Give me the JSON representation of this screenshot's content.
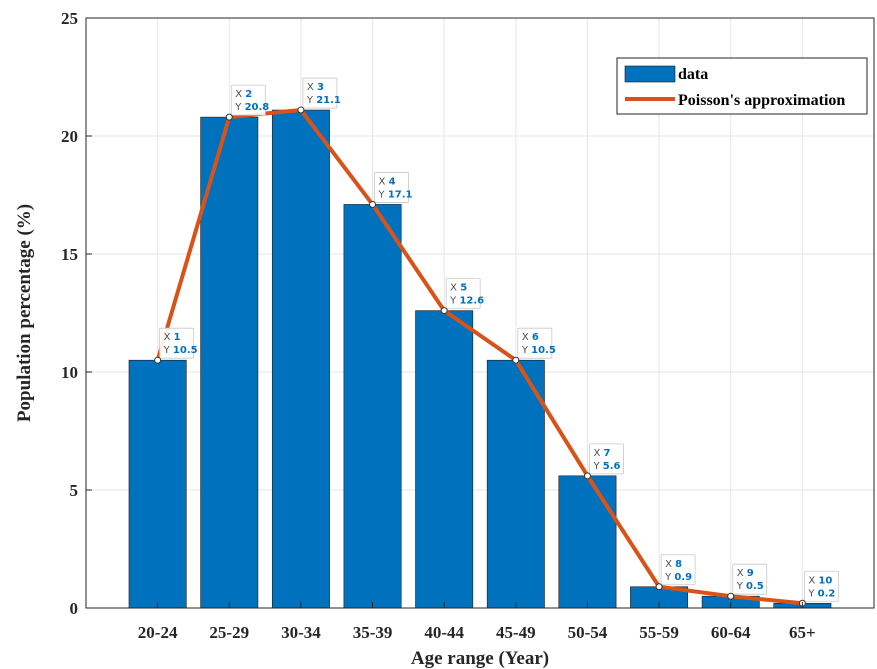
{
  "chart_data": {
    "type": "bar",
    "categories": [
      "20-24",
      "25-29",
      "30-34",
      "35-39",
      "40-44",
      "45-49",
      "50-54",
      "55-59",
      "60-64",
      "65+"
    ],
    "series": [
      {
        "name": "data",
        "type": "bar",
        "color": "#0072bd",
        "values": [
          10.5,
          20.8,
          21.1,
          17.1,
          12.6,
          10.5,
          5.6,
          0.9,
          0.5,
          0.2
        ]
      },
      {
        "name": "Poisson's approximation",
        "type": "line",
        "color": "#d95319",
        "values": [
          10.5,
          20.8,
          21.1,
          17.1,
          12.6,
          10.5,
          5.6,
          0.9,
          0.5,
          0.2
        ]
      }
    ],
    "datatips": [
      {
        "x": "1",
        "y": "10.5"
      },
      {
        "x": "2",
        "y": "20.8"
      },
      {
        "x": "3",
        "y": "21.1"
      },
      {
        "x": "4",
        "y": "17.1"
      },
      {
        "x": "5",
        "y": "12.6"
      },
      {
        "x": "6",
        "y": "10.5"
      },
      {
        "x": "7",
        "y": "5.6"
      },
      {
        "x": "8",
        "y": "0.9"
      },
      {
        "x": "9",
        "y": "0.5"
      },
      {
        "x": "10",
        "y": "0.2"
      }
    ],
    "datatip_x_key": "X",
    "datatip_y_key": "Y",
    "xlabel": "Age range (Year)",
    "ylabel": "Population percentage (%)",
    "ylim": [
      0,
      25
    ],
    "yticks": [
      "0",
      "5",
      "10",
      "15",
      "20",
      "25"
    ],
    "grid": true,
    "legend_position": "top-right"
  }
}
